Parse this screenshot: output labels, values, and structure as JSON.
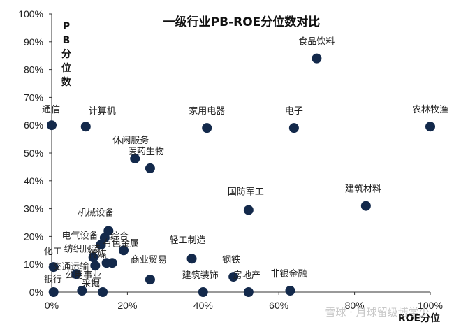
{
  "chart_data": {
    "type": "scatter",
    "title": "一级行业PB-ROE分位数对比",
    "xlabel": "ROE分位",
    "ylabel": "PB分位数",
    "xlim": [
      0,
      100
    ],
    "ylim": [
      0,
      100
    ],
    "x_ticks": [
      "0%",
      "20%",
      "40%",
      "60%",
      "80%",
      "100%"
    ],
    "y_ticks": [
      "0%",
      "10%",
      "20%",
      "30%",
      "40%",
      "50%",
      "60%",
      "70%",
      "80%",
      "90%",
      "100%"
    ],
    "grid": false,
    "points": [
      {
        "label": "通信",
        "x": 0,
        "y": 60
      },
      {
        "label": "计算机",
        "x": 9,
        "y": 59.5
      },
      {
        "label": "家用电器",
        "x": 41,
        "y": 59
      },
      {
        "label": "电子",
        "x": 64,
        "y": 59
      },
      {
        "label": "农林牧渔",
        "x": 100,
        "y": 59.5
      },
      {
        "label": "食品饮料",
        "x": 70,
        "y": 84
      },
      {
        "label": "休闲服务",
        "x": 22,
        "y": 48
      },
      {
        "label": "医药生物",
        "x": 26,
        "y": 44.5
      },
      {
        "label": "建筑材料",
        "x": 83,
        "y": 31
      },
      {
        "label": "国防军工",
        "x": 52,
        "y": 29.5
      },
      {
        "label": "机械设备",
        "x": 15,
        "y": 22
      },
      {
        "label": "综合",
        "x": 14,
        "y": 19.5
      },
      {
        "label": "电气设备",
        "x": 13,
        "y": 17
      },
      {
        "label": "有色金属",
        "x": 19,
        "y": 15
      },
      {
        "label": "纺织服装",
        "x": 11,
        "y": 12.5
      },
      {
        "label": "传媒",
        "x": 16,
        "y": 10.5
      },
      {
        "label": "交通运输",
        "x": 6.5,
        "y": 6.5
      },
      {
        "label": "化工",
        "x": 0.5,
        "y": 9
      },
      {
        "label": "轻工制造",
        "x": 37,
        "y": 12
      },
      {
        "label": "钢铁",
        "x": 48,
        "y": 5.5
      },
      {
        "label": "商业贸易",
        "x": 26,
        "y": 4.5
      },
      {
        "label": "银行",
        "x": 0.5,
        "y": 0
      },
      {
        "label": "公用事业",
        "x": 8,
        "y": 0.5
      },
      {
        "label": "采掘",
        "x": 13.5,
        "y": 0
      },
      {
        "label": "建筑装饰",
        "x": 40,
        "y": 0
      },
      {
        "label": "房地产",
        "x": 52,
        "y": 0
      },
      {
        "label": "非银金融",
        "x": 63,
        "y": 0.5
      },
      {
        "label": "",
        "x": 14.5,
        "y": 10.5
      },
      {
        "label": "",
        "x": 11.5,
        "y": 9.5
      }
    ]
  },
  "watermark": "雪球 · 月球留级博学少"
}
